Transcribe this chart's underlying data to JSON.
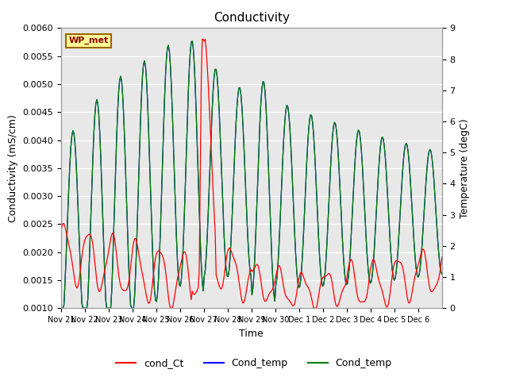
{
  "title": "Conductivity",
  "xlabel": "Time",
  "ylabel_left": "Conductivity (mS/cm)",
  "ylabel_right": "Temperature (degC)",
  "ylim_left": [
    0.001,
    0.006
  ],
  "ylim_right": [
    0.0,
    9.0
  ],
  "yticks_left": [
    0.001,
    0.0015,
    0.002,
    0.0025,
    0.003,
    0.0035,
    0.004,
    0.0045,
    0.005,
    0.0055,
    0.006
  ],
  "yticks_right": [
    0.0,
    1.0,
    2.0,
    3.0,
    4.0,
    5.0,
    6.0,
    7.0,
    8.0,
    9.0
  ],
  "legend_labels": [
    "cond_Ct",
    "Cond_temp",
    "Cond_temp"
  ],
  "legend_colors": [
    "red",
    "blue",
    "green"
  ],
  "watermark_text": "WP_met",
  "watermark_bg": "#FFFF99",
  "watermark_border": "#996600",
  "bg_color": "#E8E8E8",
  "grid_color": "white",
  "title_fontsize": 11,
  "axis_fontsize": 9,
  "tick_label_size": 8,
  "xtick_labels": [
    "Nov 21",
    "Nov 22",
    "Nov 23",
    "Nov 24",
    "Nov 25",
    "Nov 26",
    "Nov 27",
    "Nov 28",
    "Nov 29",
    "Nov 30",
    "Dec 1",
    "Dec 2",
    "Dec 3",
    "Dec 4",
    "Dec 5",
    "Dec 6"
  ]
}
